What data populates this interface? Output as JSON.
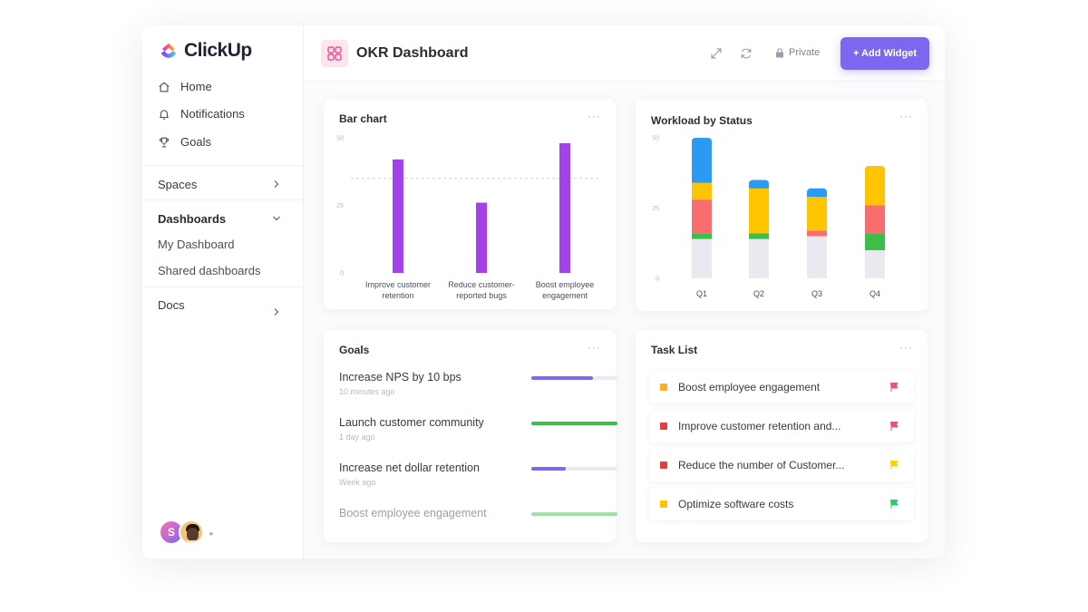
{
  "app": {
    "name": "ClickUp"
  },
  "sidebar": {
    "nav": [
      {
        "label": "Home",
        "icon": "home-icon"
      },
      {
        "label": "Notifications",
        "icon": "bell-icon"
      },
      {
        "label": "Goals",
        "icon": "trophy-icon"
      }
    ],
    "spaces_label": "Spaces",
    "dashboards_label": "Dashboards",
    "dashboards_items": [
      "My Dashboard",
      "Shared dashboards"
    ],
    "docs_label": "Docs",
    "user_initial": "S"
  },
  "header": {
    "title": "OKR Dashboard",
    "privacy": "Private",
    "add_widget": "+ Add Widget"
  },
  "widgets": {
    "bar_chart_title": "Bar chart",
    "workload_title": "Workload by Status",
    "goals_title": "Goals",
    "tasklist_title": "Task List",
    "menu_glyph": "···"
  },
  "chart_data": [
    {
      "type": "bar",
      "title": "Bar chart",
      "categories": [
        [
          "Improve customer",
          "retention"
        ],
        [
          "Reduce customer-",
          "reported bugs"
        ],
        [
          "Boost employee",
          "engagement"
        ]
      ],
      "values": [
        42,
        26,
        48
      ],
      "ylim": [
        0,
        50
      ],
      "yticks": [
        0,
        25,
        50
      ],
      "reference_line": 35,
      "color": "#a541e8"
    },
    {
      "type": "bar",
      "stacked": true,
      "title": "Workload by Status",
      "categories": [
        "Q1",
        "Q2",
        "Q3",
        "Q4"
      ],
      "ylim": [
        0,
        50
      ],
      "yticks": [
        0,
        25,
        50
      ],
      "series_colors": [
        "#e8eaef",
        "#3dbd4a",
        "#f86e6e",
        "#ffc400",
        "#2b9af3"
      ],
      "series": [
        {
          "values": [
            14,
            14,
            15,
            10
          ]
        },
        {
          "values": [
            2,
            2,
            0,
            6
          ]
        },
        {
          "values": [
            12,
            0,
            2,
            10
          ]
        },
        {
          "values": [
            6,
            16,
            12,
            14
          ]
        },
        {
          "values": [
            16,
            3,
            3,
            0
          ]
        }
      ]
    }
  ],
  "goals": [
    {
      "name": "Increase NPS by 10 bps",
      "time": "10 minutes ago",
      "progress": 0.72,
      "color": "#7b68ee"
    },
    {
      "name": "Launch customer community",
      "time": "1 day ago",
      "progress": 1.0,
      "color": "#3dbd4a"
    },
    {
      "name": "Increase net dollar retention",
      "time": "Week ago",
      "progress": 0.4,
      "color": "#7b68ee"
    },
    {
      "name": "Boost employee engagement",
      "time": "",
      "progress": 1.0,
      "color": "#9ee2a4"
    }
  ],
  "tasks": [
    {
      "name": "Boost employee engagement",
      "square": "#ffb020",
      "flag": "#f0506e"
    },
    {
      "name": "Improve customer retention and...",
      "square": "#e53e3e",
      "flag": "#f0506e"
    },
    {
      "name": "Reduce the number of Customer...",
      "square": "#e53e3e",
      "flag": "#ffd200"
    },
    {
      "name": "Optimize software costs",
      "square": "#ffc400",
      "flag": "#2ecc71"
    }
  ]
}
